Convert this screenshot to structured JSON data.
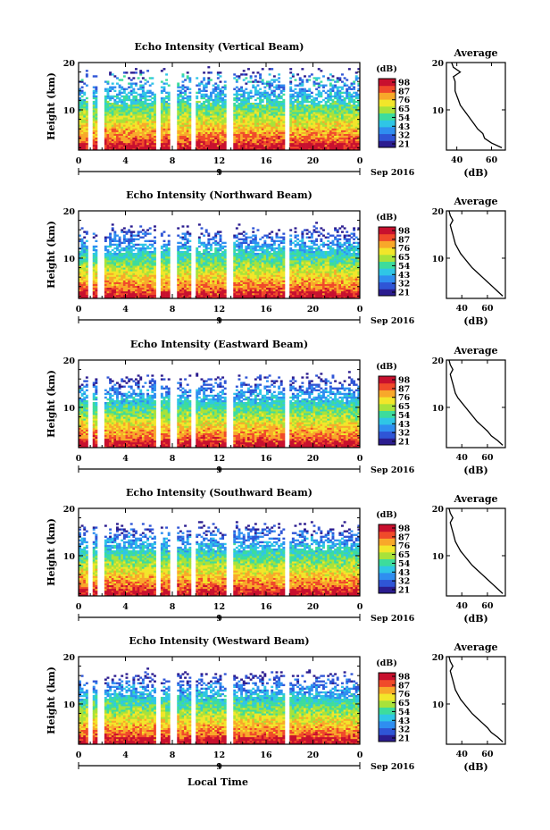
{
  "colors": {
    "colormap": [
      "#2b1c8f",
      "#2f55d6",
      "#2f8ef0",
      "#2fc6e6",
      "#3ddc9c",
      "#a8e23a",
      "#f2e62a",
      "#f8a82a",
      "#f04a2a",
      "#c8102e"
    ],
    "axis": "#000000",
    "background": "#ffffff"
  },
  "figure": {
    "xlabel": "Local Time",
    "date_label": "Sep 2016",
    "x_tick_labels": [
      "0",
      "4",
      "8",
      "12",
      "16",
      "20",
      "0"
    ],
    "date_tick_label": "9",
    "y_tick_labels": [
      "10",
      "20"
    ],
    "ylabel": "Height (km)",
    "colorbar_unit": "(dB)"
  },
  "chart_data": [
    {
      "type": "heatmap",
      "title": "Echo Intensity (Vertical Beam)",
      "xlabel": "Local Time",
      "ylabel": "Height (km)",
      "xlim": [
        0,
        24
      ],
      "ylim": [
        1.5,
        20
      ],
      "colorbar": {
        "label": "(dB)",
        "ticks": [
          "98",
          "87",
          "76",
          "65",
          "54",
          "43",
          "32",
          "21"
        ],
        "range": [
          21,
          98
        ]
      },
      "data_gaps_hours": [
        [
          0.8,
          1.1
        ],
        [
          1.7,
          2.1
        ],
        [
          6.6,
          6.9
        ],
        [
          7.8,
          8.3
        ],
        [
          9.7,
          10.0
        ],
        [
          12.6,
          13.1
        ],
        [
          17.7,
          17.9
        ]
      ],
      "average_profile": {
        "title": "Average",
        "xlabel": "(dB)",
        "x_tick_labels": [
          "40",
          "60"
        ],
        "xlim": [
          34,
          68
        ],
        "height_km": [
          2,
          3,
          4,
          5,
          6,
          7,
          8,
          9,
          10,
          11,
          12,
          13,
          14,
          15,
          16,
          17,
          18,
          19,
          20
        ],
        "values_db": [
          66,
          60,
          56,
          55,
          52,
          50,
          48,
          46,
          44,
          42,
          41,
          40,
          39,
          39,
          39,
          38,
          42,
          38,
          37
        ]
      }
    },
    {
      "type": "heatmap",
      "title": "Echo Intensity (Northward Beam)",
      "xlabel": "Local Time",
      "ylabel": "Height (km)",
      "xlim": [
        0,
        24
      ],
      "ylim": [
        1.5,
        20
      ],
      "colorbar": {
        "label": "(dB)",
        "ticks": [
          "98",
          "87",
          "76",
          "65",
          "54",
          "43",
          "32",
          "21"
        ],
        "range": [
          21,
          98
        ]
      },
      "data_gaps_hours": [
        [
          0.8,
          1.1
        ],
        [
          1.7,
          2.1
        ],
        [
          6.6,
          6.9
        ],
        [
          7.8,
          8.3
        ],
        [
          9.7,
          10.0
        ],
        [
          12.6,
          13.1
        ],
        [
          17.7,
          17.9
        ]
      ],
      "average_profile": {
        "title": "Average",
        "xlabel": "(dB)",
        "x_tick_labels": [
          "40",
          "60"
        ],
        "xlim": [
          28,
          74
        ],
        "height_km": [
          2,
          3,
          4,
          5,
          6,
          7,
          8,
          9,
          10,
          11,
          12,
          13,
          14,
          15,
          16,
          17,
          18,
          19,
          20
        ],
        "values_db": [
          72,
          68,
          64,
          60,
          56,
          52,
          48,
          45,
          42,
          39,
          37,
          35,
          34,
          33,
          32,
          31,
          33,
          31,
          30
        ]
      }
    },
    {
      "type": "heatmap",
      "title": "Echo Intensity (Eastward Beam)",
      "xlabel": "Local Time",
      "ylabel": "Height (km)",
      "xlim": [
        0,
        24
      ],
      "ylim": [
        1.5,
        20
      ],
      "colorbar": {
        "label": "(dB)",
        "ticks": [
          "98",
          "87",
          "76",
          "65",
          "54",
          "43",
          "32",
          "21"
        ],
        "range": [
          21,
          98
        ]
      },
      "data_gaps_hours": [
        [
          0.8,
          1.1
        ],
        [
          1.7,
          2.1
        ],
        [
          6.6,
          6.9
        ],
        [
          7.8,
          8.3
        ],
        [
          9.7,
          10.0
        ],
        [
          12.6,
          13.1
        ],
        [
          17.7,
          17.9
        ]
      ],
      "average_profile": {
        "title": "Average",
        "xlabel": "(dB)",
        "x_tick_labels": [
          "40",
          "60"
        ],
        "xlim": [
          28,
          74
        ],
        "height_km": [
          2,
          3,
          4,
          5,
          6,
          7,
          8,
          9,
          10,
          11,
          12,
          13,
          14,
          15,
          16,
          17,
          18,
          19,
          20
        ],
        "values_db": [
          72,
          68,
          63,
          60,
          56,
          52,
          49,
          46,
          43,
          40,
          37,
          35,
          34,
          33,
          32,
          31,
          33,
          31,
          30
        ]
      }
    },
    {
      "type": "heatmap",
      "title": "Echo Intensity (Southward Beam)",
      "xlabel": "Local Time",
      "ylabel": "Height (km)",
      "xlim": [
        0,
        24
      ],
      "ylim": [
        1.5,
        20
      ],
      "colorbar": {
        "label": "(dB)",
        "ticks": [
          "98",
          "87",
          "76",
          "65",
          "54",
          "43",
          "32",
          "21"
        ],
        "range": [
          21,
          98
        ]
      },
      "data_gaps_hours": [
        [
          0.8,
          1.1
        ],
        [
          1.7,
          2.1
        ],
        [
          6.6,
          6.9
        ],
        [
          7.8,
          8.3
        ],
        [
          9.7,
          10.0
        ],
        [
          12.6,
          13.1
        ],
        [
          17.7,
          17.9
        ]
      ],
      "average_profile": {
        "title": "Average",
        "xlabel": "(dB)",
        "x_tick_labels": [
          "40",
          "60"
        ],
        "xlim": [
          28,
          74
        ],
        "height_km": [
          2,
          3,
          4,
          5,
          6,
          7,
          8,
          9,
          10,
          11,
          12,
          13,
          14,
          15,
          16,
          17,
          18,
          19,
          20
        ],
        "values_db": [
          72,
          68,
          64,
          60,
          56,
          52,
          48,
          45,
          42,
          39,
          37,
          35,
          34,
          33,
          32,
          31,
          33,
          31,
          30
        ]
      }
    },
    {
      "type": "heatmap",
      "title": "Echo Intensity (Westward Beam)",
      "xlabel": "Local Time",
      "ylabel": "Height (km)",
      "xlim": [
        0,
        24
      ],
      "ylim": [
        1.5,
        20
      ],
      "colorbar": {
        "label": "(dB)",
        "ticks": [
          "98",
          "87",
          "76",
          "65",
          "54",
          "43",
          "32",
          "21"
        ],
        "range": [
          21,
          98
        ]
      },
      "data_gaps_hours": [
        [
          0.8,
          1.1
        ],
        [
          1.7,
          2.1
        ],
        [
          6.6,
          6.9
        ],
        [
          7.8,
          8.3
        ],
        [
          9.7,
          10.0
        ],
        [
          12.6,
          13.1
        ],
        [
          17.7,
          17.9
        ]
      ],
      "average_profile": {
        "title": "Average",
        "xlabel": "(dB)",
        "x_tick_labels": [
          "40",
          "60"
        ],
        "xlim": [
          28,
          74
        ],
        "height_km": [
          2,
          3,
          4,
          5,
          6,
          7,
          8,
          9,
          10,
          11,
          12,
          13,
          14,
          15,
          16,
          17,
          18,
          19,
          20
        ],
        "values_db": [
          72,
          68,
          63,
          60,
          56,
          52,
          48,
          45,
          42,
          39,
          37,
          35,
          34,
          33,
          32,
          31,
          33,
          31,
          30
        ]
      }
    }
  ]
}
